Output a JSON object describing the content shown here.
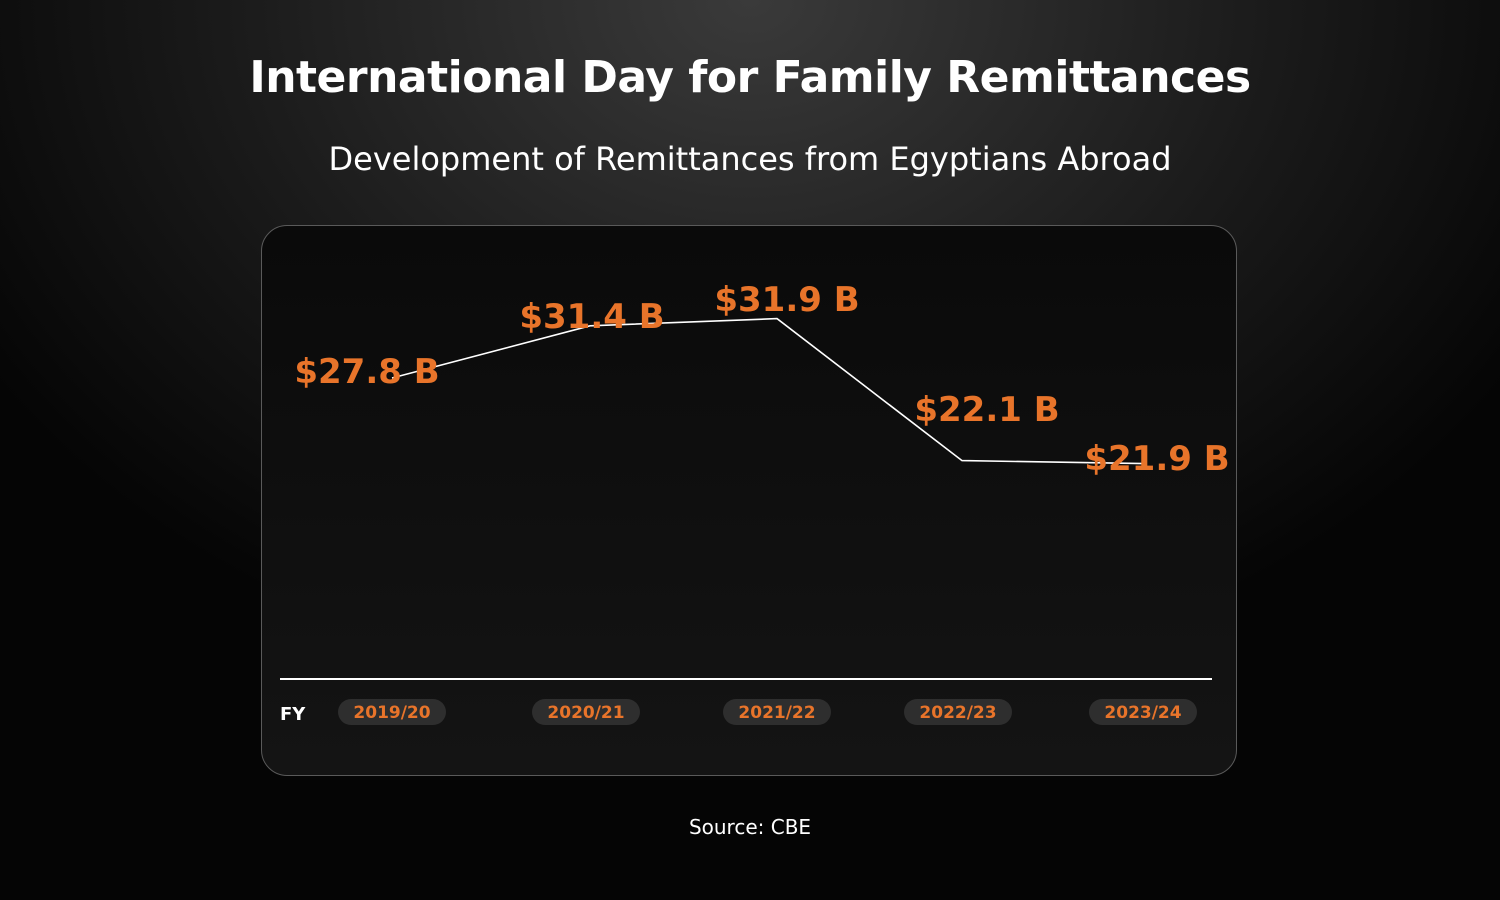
{
  "header": {
    "title": "International Day for Family Remittances",
    "subtitle": "Development of Remittances from Egyptians Abroad"
  },
  "footer": {
    "source": "Source: CBE"
  },
  "colors": {
    "accent": "#e8742a",
    "line": "#ffffff",
    "pill_bg": "#2e2e2e",
    "card_border": "#5a5a5a"
  },
  "chart_data": {
    "type": "line",
    "title": "Development of Remittances from Egyptians Abroad",
    "xlabel": "FY",
    "ylabel": "",
    "categories": [
      "2019/20",
      "2020/21",
      "2021/22",
      "2022/23",
      "2023/24"
    ],
    "series": [
      {
        "values": [
          27.8,
          31.4,
          31.9,
          22.1,
          21.9
        ],
        "labels": [
          "$27.8 B",
          "$31.4 B",
          "$31.9 B",
          "$22.1 B",
          "$21.9 B"
        ]
      }
    ],
    "grid": false,
    "legend": "none"
  }
}
